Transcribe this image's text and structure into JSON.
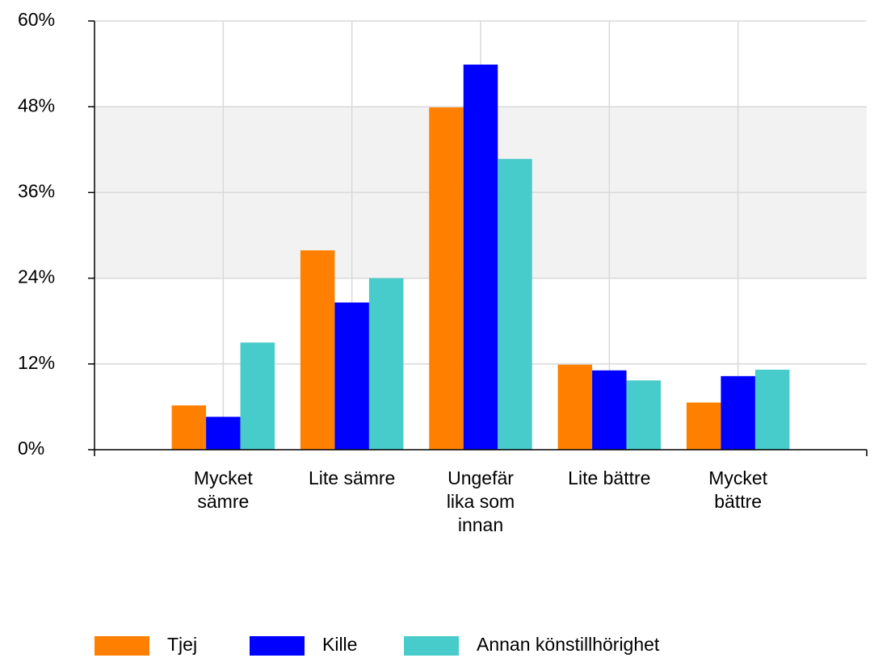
{
  "chart_data": {
    "type": "bar",
    "categories": [
      "Mycket sämre",
      "Lite sämre",
      "Ungefär lika som innan",
      "Lite bättre",
      "Mycket bättre"
    ],
    "series": [
      {
        "name": "Tjej",
        "color": "#ff8000",
        "values": [
          6.2,
          27.9,
          47.9,
          11.9,
          6.6
        ]
      },
      {
        "name": "Kille",
        "color": "#0000ff",
        "values": [
          4.6,
          20.6,
          53.9,
          11.1,
          10.3
        ]
      },
      {
        "name": "Annan könstillhörighet",
        "color": "#48cbcb",
        "values": [
          15.0,
          24.0,
          40.7,
          9.7,
          11.2
        ]
      }
    ],
    "ylim": [
      0,
      60
    ],
    "yticks": [
      {
        "value": 0,
        "label": "0%"
      },
      {
        "value": 12,
        "label": "12%"
      },
      {
        "value": 24,
        "label": "24%"
      },
      {
        "value": 36,
        "label": "36%"
      },
      {
        "value": 48,
        "label": "48%"
      },
      {
        "value": 60,
        "label": "60%"
      }
    ],
    "grid": true,
    "legend": "bottom"
  }
}
